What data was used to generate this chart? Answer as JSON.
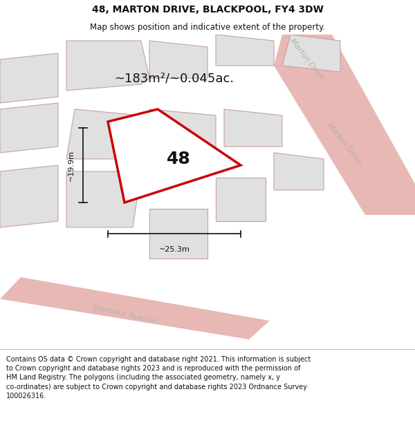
{
  "title": "48, MARTON DRIVE, BLACKPOOL, FY4 3DW",
  "subtitle": "Map shows position and indicative extent of the property.",
  "footer": "Contains OS data © Crown copyright and database right 2021. This information is subject\nto Crown copyright and database rights 2023 and is reproduced with the permission of\nHM Land Registry. The polygons (including the associated geometry, namely x, y\nco-ordinates) are subject to Crown copyright and database rights 2023 Ordnance Survey\n100026316.",
  "area_label": "~183m²/~0.045ac.",
  "number_label": "48",
  "width_label": "~25.3m",
  "height_label": "~19.9m",
  "bg_color": "#ffffff",
  "map_bg": "#efefef",
  "road_color": "#e8b8b4",
  "building_fill": "#e0e0e0",
  "building_stroke": "#c8a0a0",
  "subject_fill": "#ffffff",
  "subject_stroke": "#cc0000",
  "road_label_color": "#b8b0b0",
  "dim_color": "#111111",
  "title_fontsize": 10,
  "subtitle_fontsize": 8.5,
  "footer_fontsize": 7,
  "area_fontsize": 13,
  "number_fontsize": 18,
  "dim_fontsize": 8
}
